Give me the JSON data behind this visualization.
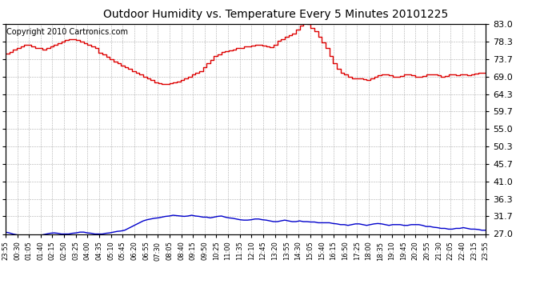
{
  "title": "Outdoor Humidity vs. Temperature Every 5 Minutes 20101225",
  "copyright": "Copyright 2010 Cartronics.com",
  "background_color": "#ffffff",
  "plot_bg_color": "#ffffff",
  "grid_color": "#999999",
  "line_color_red": "#dd0000",
  "line_color_blue": "#0000cc",
  "yticks": [
    27.0,
    31.7,
    36.3,
    41.0,
    45.7,
    50.3,
    55.0,
    59.7,
    64.3,
    69.0,
    73.7,
    78.3,
    83.0
  ],
  "ymin": 27.0,
  "ymax": 83.0,
  "x_labels": [
    "23:55",
    "00:30",
    "01:05",
    "01:40",
    "02:15",
    "02:50",
    "03:25",
    "04:00",
    "04:35",
    "05:10",
    "05:45",
    "06:20",
    "06:55",
    "07:30",
    "08:05",
    "08:40",
    "09:15",
    "09:50",
    "10:25",
    "11:00",
    "11:35",
    "12:10",
    "12:45",
    "13:20",
    "13:55",
    "14:30",
    "15:05",
    "15:40",
    "16:15",
    "16:50",
    "17:25",
    "18:00",
    "18:35",
    "19:10",
    "19:45",
    "20:20",
    "20:55",
    "21:30",
    "22:05",
    "22:40",
    "23:15",
    "23:55"
  ],
  "red_values": [
    75.2,
    75.6,
    76.1,
    76.6,
    77.0,
    77.5,
    77.5,
    77.0,
    76.6,
    76.6,
    76.2,
    76.6,
    77.0,
    77.5,
    77.9,
    78.3,
    78.7,
    79.0,
    79.0,
    78.7,
    78.3,
    77.9,
    77.5,
    77.0,
    76.6,
    75.4,
    74.8,
    74.3,
    73.7,
    73.0,
    72.5,
    72.0,
    71.5,
    71.0,
    70.5,
    70.0,
    69.5,
    69.0,
    68.5,
    68.0,
    67.5,
    67.2,
    67.0,
    67.0,
    67.2,
    67.5,
    67.7,
    68.0,
    68.5,
    69.0,
    69.5,
    70.0,
    70.5,
    71.5,
    72.5,
    73.5,
    74.5,
    75.0,
    75.5,
    75.8,
    76.0,
    76.2,
    76.5,
    76.7,
    77.0,
    77.0,
    77.2,
    77.5,
    77.5,
    77.3,
    77.0,
    76.8,
    77.5,
    78.5,
    79.0,
    79.5,
    80.0,
    80.5,
    81.5,
    82.5,
    83.2,
    83.0,
    82.0,
    81.0,
    79.5,
    78.0,
    76.5,
    74.5,
    72.5,
    71.0,
    70.0,
    69.5,
    69.0,
    68.5,
    68.5,
    68.5,
    68.3,
    68.0,
    68.5,
    69.0,
    69.3,
    69.5,
    69.5,
    69.3,
    69.0,
    69.0,
    69.2,
    69.5,
    69.5,
    69.3,
    69.0,
    69.0,
    69.2,
    69.5,
    69.5,
    69.5,
    69.3,
    69.0,
    69.2,
    69.5,
    69.5,
    69.3,
    69.5,
    69.5,
    69.3,
    69.5,
    69.8,
    70.0,
    70.0,
    70.0
  ],
  "blue_values": [
    27.5,
    27.3,
    27.0,
    26.8,
    26.6,
    26.5,
    26.3,
    26.3,
    26.3,
    26.5,
    26.8,
    27.0,
    27.2,
    27.3,
    27.2,
    27.0,
    27.0,
    27.0,
    27.2,
    27.3,
    27.5,
    27.5,
    27.3,
    27.2,
    27.0,
    27.0,
    27.0,
    27.2,
    27.3,
    27.5,
    27.7,
    27.8,
    28.0,
    28.5,
    29.0,
    29.5,
    30.0,
    30.5,
    30.8,
    31.0,
    31.2,
    31.3,
    31.5,
    31.7,
    31.8,
    32.0,
    31.9,
    31.8,
    31.7,
    31.8,
    32.0,
    31.8,
    31.7,
    31.5,
    31.5,
    31.3,
    31.5,
    31.7,
    31.8,
    31.5,
    31.3,
    31.2,
    31.0,
    30.8,
    30.7,
    30.7,
    30.8,
    31.0,
    31.0,
    30.8,
    30.7,
    30.5,
    30.3,
    30.3,
    30.5,
    30.7,
    30.5,
    30.3,
    30.3,
    30.5,
    30.3,
    30.3,
    30.2,
    30.2,
    30.0,
    30.0,
    30.0,
    30.0,
    29.8,
    29.7,
    29.5,
    29.5,
    29.3,
    29.5,
    29.7,
    29.7,
    29.5,
    29.3,
    29.5,
    29.7,
    29.8,
    29.7,
    29.5,
    29.3,
    29.5,
    29.5,
    29.5,
    29.3,
    29.3,
    29.5,
    29.5,
    29.5,
    29.3,
    29.0,
    29.0,
    28.8,
    28.7,
    28.5,
    28.5,
    28.3,
    28.3,
    28.5,
    28.5,
    28.7,
    28.5,
    28.3,
    28.3,
    28.2,
    28.0,
    28.0
  ],
  "figsize": [
    6.9,
    3.75
  ],
  "dpi": 100,
  "title_fontsize": 10,
  "copyright_fontsize": 7,
  "ytick_fontsize": 8,
  "xtick_fontsize": 6
}
